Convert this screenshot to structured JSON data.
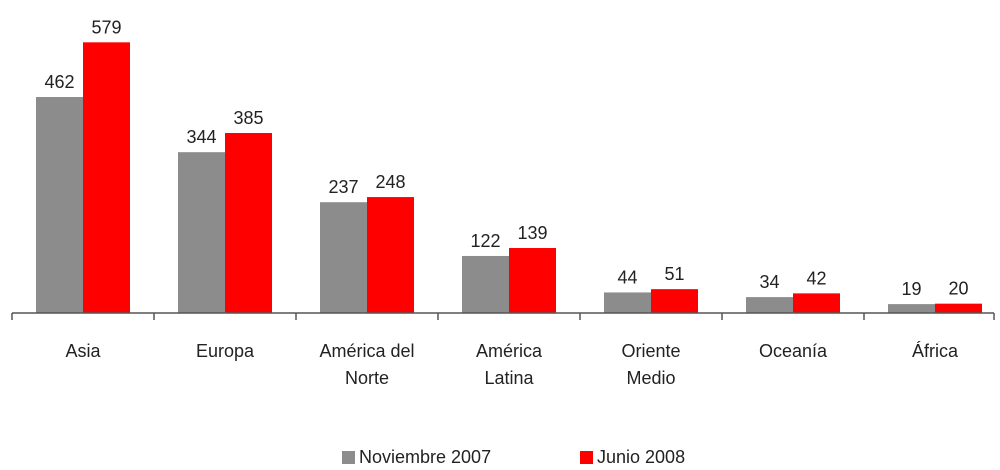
{
  "chart_data": {
    "type": "bar",
    "categories": [
      "Asia",
      "Europa",
      "América del\nNorte",
      "América\nLatina",
      "Oriente\nMedio",
      "Oceanía",
      "África"
    ],
    "series": [
      {
        "name": "Noviembre 2007",
        "color": "#8c8c8c",
        "values": [
          462,
          344,
          237,
          122,
          44,
          34,
          19
        ]
      },
      {
        "name": "Junio 2008",
        "color": "#ff0000",
        "values": [
          579,
          385,
          248,
          139,
          51,
          42,
          20
        ]
      }
    ],
    "ylim": [
      0,
      600
    ]
  }
}
